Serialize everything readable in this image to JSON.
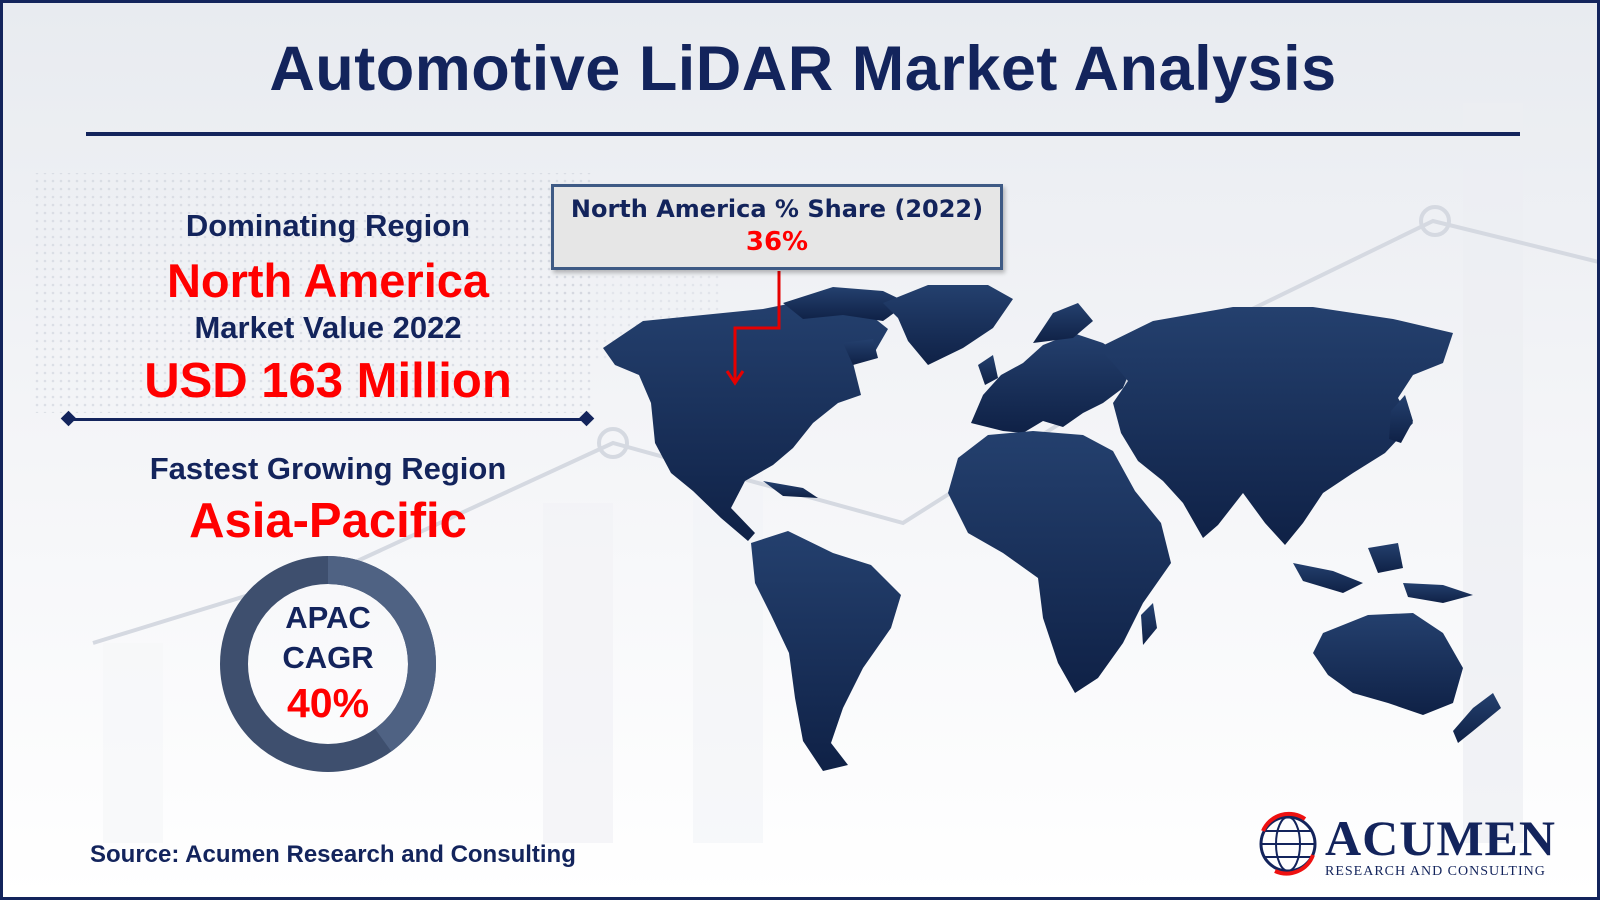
{
  "title": "Automotive LiDAR Market Analysis",
  "dominating": {
    "label": "Dominating Region",
    "region": "North America",
    "market_value_label": "Market Value 2022",
    "market_value": "USD 163 Million"
  },
  "fastest": {
    "label": "Fastest Growing Region",
    "region": "Asia-Pacific"
  },
  "cagr": {
    "line1": "APAC",
    "line2": "CAGR",
    "value": "40%",
    "fraction": 0.4
  },
  "callout": {
    "label": "North America % Share (2022)",
    "value": "36%"
  },
  "source": "Source: Acumen Research and Consulting",
  "logo": {
    "name": "ACUMEN",
    "subtitle": "RESEARCH AND CONSULTING"
  },
  "colors": {
    "navy": "#13245c",
    "red": "#ff0000",
    "map": "#1b3461"
  },
  "icons": [
    "world-map-icon",
    "globe-logo-icon"
  ]
}
